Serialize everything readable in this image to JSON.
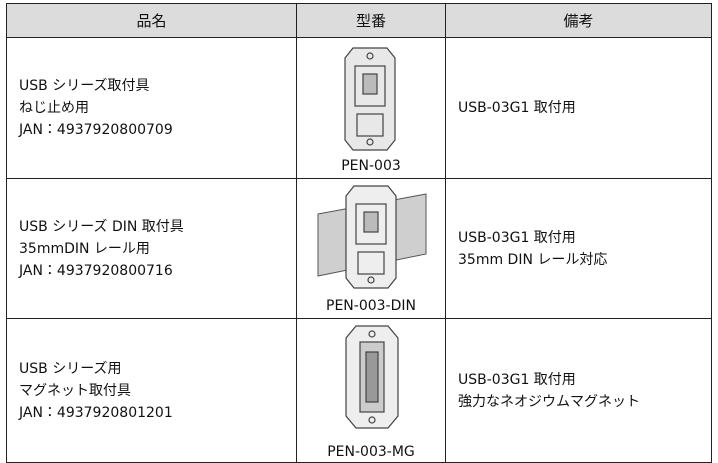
{
  "table": {
    "header": [
      "品名",
      "型番",
      "備考"
    ],
    "rows": [
      [
        [
          "USB シリーズ取付具",
          "ねじ止め用",
          "JAN：4937920800709"
        ],
        "PEN-003",
        [
          "USB-03G1 取付用"
        ]
      ],
      [
        [
          "USB シリーズ DIN 取付具",
          "35mmDIN レール用",
          "JAN：4937920800716"
        ],
        "PEN-003-DIN",
        [
          "USB-03G1 取付用",
          "35mm DIN レール対応"
        ]
      ],
      [
        [
          "USB シリーズ用",
          "マグネット取付具",
          "JAN：4937920801201"
        ],
        "PEN-003-MG",
        [
          "USB-03G1 取付用",
          "強力なネオジウムマグネット"
        ]
      ]
    ]
  }
}
